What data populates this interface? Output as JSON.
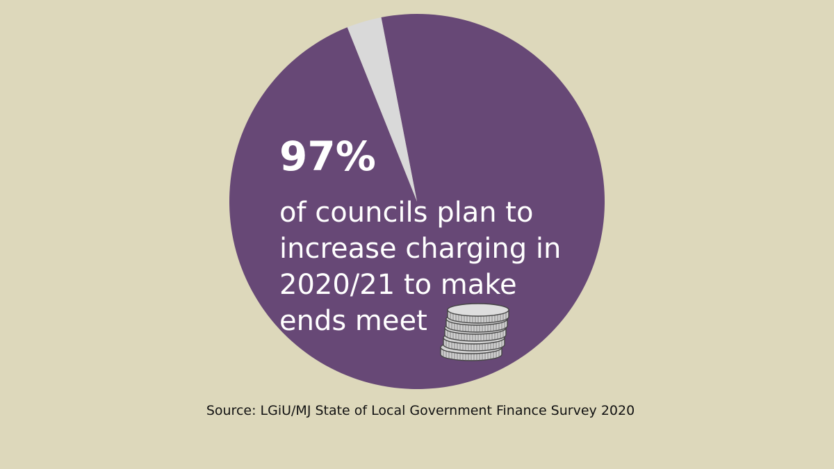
{
  "chart_data": {
    "type": "pie",
    "values": [
      97,
      3
    ],
    "colors": [
      "#674876",
      "#d9d9d9"
    ],
    "start_angle_deg": -11
  },
  "headline": "97%",
  "body": "of councils plan to increase charging in 2020/21 to make ends meet",
  "source": "Source: LGiU/MJ State of Local Government Finance Survey 2020",
  "decoration": {
    "icon": "coin-stack-icon"
  },
  "colors": {
    "background": "#ddd8bb",
    "text": "#ffffff",
    "source_text": "#111111"
  }
}
